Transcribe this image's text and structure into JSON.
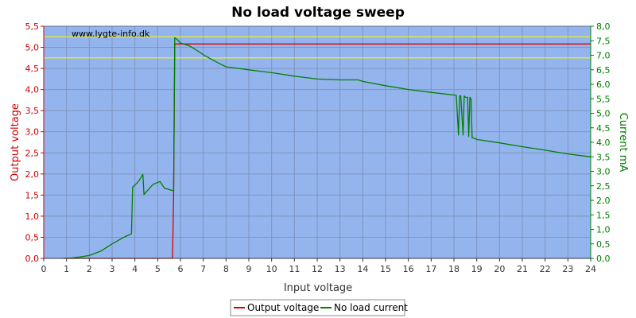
{
  "chart_data": {
    "type": "line",
    "title": "No load voltage sweep",
    "xlabel": "Input voltage",
    "ylabel_left": "Output voltage",
    "ylabel_right": "Current mA",
    "watermark": "www.lygte-info.dk",
    "xlim": [
      0,
      24
    ],
    "ylim_left": [
      0,
      5.5
    ],
    "ylim_right": [
      0,
      8
    ],
    "x_ticks": [
      "0",
      "1",
      "2",
      "3",
      "4",
      "5",
      "6",
      "7",
      "8",
      "9",
      "10",
      "11",
      "12",
      "13",
      "14",
      "15",
      "16",
      "17",
      "18",
      "19",
      "20",
      "21",
      "22",
      "23",
      "24"
    ],
    "y_left_ticks": [
      "0,0",
      "0,5",
      "1,0",
      "1,5",
      "2,0",
      "2,5",
      "3,0",
      "3,5",
      "4,0",
      "4,5",
      "5,0",
      "5,5"
    ],
    "y_right_ticks": [
      "0,0",
      "0,5",
      "1,0",
      "1,5",
      "2,0",
      "2,5",
      "3,0",
      "3,5",
      "4,0",
      "4,5",
      "5,0",
      "5,5",
      "6,0",
      "6,5",
      "7,0",
      "7,5",
      "8,0"
    ],
    "grid": true,
    "reference_lines_left": [
      5.25,
      4.75
    ],
    "legend_position": "bottom-center",
    "colors": {
      "plot_bg": "#94b4ee",
      "grid": "#7f95bd",
      "reference": "#ffff00",
      "left_axis": "#cc0000",
      "right_axis": "#008000"
    },
    "series": [
      {
        "name": "Output voltage",
        "axis": "left",
        "color": "#dd0000",
        "x": [
          0.85,
          5.65,
          5.7,
          5.75,
          24.0
        ],
        "y": [
          0.0,
          0.0,
          1.5,
          5.08,
          5.08
        ]
      },
      {
        "name": "No load current",
        "axis": "right",
        "color": "#008000",
        "x": [
          1.0,
          1.3,
          1.6,
          2.0,
          2.5,
          3.0,
          3.5,
          3.85,
          3.9,
          4.1,
          4.2,
          4.35,
          4.4,
          4.6,
          4.8,
          5.1,
          5.3,
          5.6,
          5.7,
          5.75,
          5.85,
          6.0,
          6.1,
          6.4,
          6.7,
          7.0,
          7.5,
          8.0,
          8.5,
          9.0,
          9.5,
          10.0,
          11.0,
          12.0,
          13.0,
          13.8,
          14.0,
          15.0,
          16.0,
          17.0,
          18.1,
          18.2,
          18.25,
          18.3,
          18.4,
          18.45,
          18.5,
          18.6,
          18.65,
          18.7,
          18.75,
          18.8,
          18.85,
          19.0,
          20.0,
          21.0,
          22.0,
          23.0,
          24.0
        ],
        "y": [
          0.0,
          0.02,
          0.05,
          0.1,
          0.25,
          0.5,
          0.72,
          0.85,
          2.45,
          2.6,
          2.7,
          2.9,
          2.2,
          2.38,
          2.55,
          2.65,
          2.42,
          2.35,
          2.33,
          7.6,
          7.55,
          7.42,
          7.4,
          7.32,
          7.18,
          7.02,
          6.8,
          6.6,
          6.55,
          6.5,
          6.45,
          6.4,
          6.28,
          6.18,
          6.15,
          6.15,
          6.1,
          5.95,
          5.82,
          5.72,
          5.62,
          4.25,
          5.6,
          5.6,
          4.25,
          5.6,
          5.55,
          5.55,
          4.2,
          5.55,
          5.5,
          4.15,
          4.15,
          4.1,
          3.98,
          3.85,
          3.73,
          3.6,
          3.5
        ]
      }
    ]
  }
}
